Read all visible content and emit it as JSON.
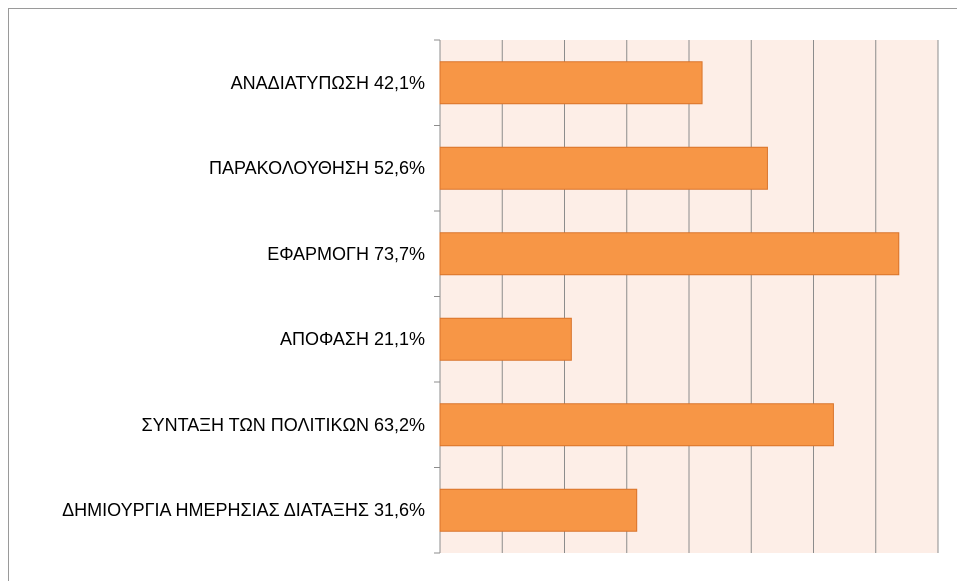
{
  "chart_data": {
    "type": "hbar",
    "categories": [
      "ΑΝΑΔΙΑΤΥΠΩΣΗ 42,1%",
      "ΠΑΡΑΚΟΛΟΥΘΗΣΗ 52,6%",
      "ΕΦΑΡΜΟΓΗ 73,7%",
      "ΑΠΟΦΑΣΗ 21,1%",
      "ΣΥΝΤΑΞΗ ΤΩΝ ΠΟΛΙΤΙΚΩΝ 63,2%",
      "ΔΗΜΙΟΥΡΓΙΑ ΗΜΕΡΗΣΙΑΣ ΔΙΑΤΑΞΗΣ 31,6%"
    ],
    "values": [
      42.1,
      52.6,
      73.7,
      21.1,
      63.2,
      31.6
    ],
    "color": "#f79646",
    "xlim": [
      0,
      80
    ],
    "xticks": [
      0,
      10,
      20,
      30,
      40,
      50,
      60,
      70,
      80
    ],
    "grid": true
  }
}
